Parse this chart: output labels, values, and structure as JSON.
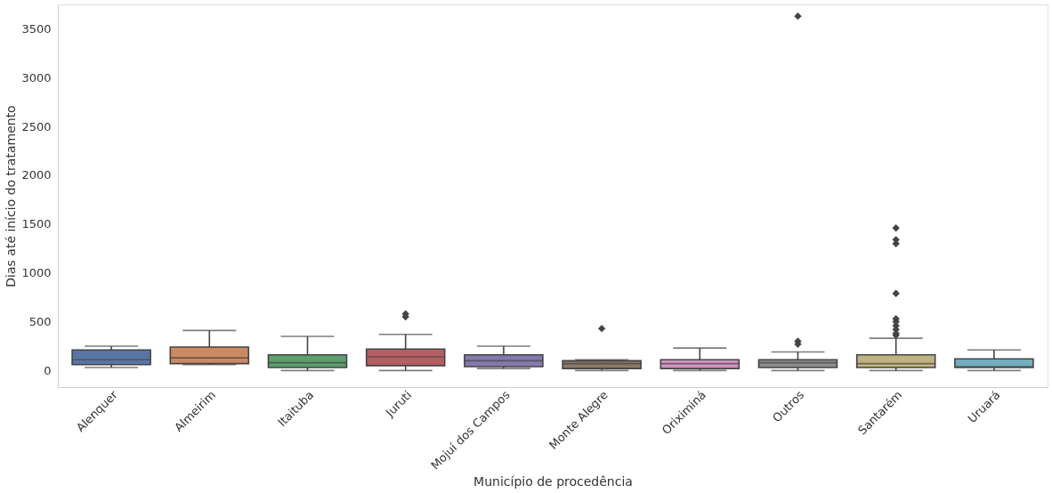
{
  "chart_data": {
    "type": "box",
    "xlabel": "Município de procedência",
    "ylabel": "Dias até início do tratamento",
    "categories": [
      "Alenquer",
      "Almeirim",
      "Itaituba",
      "Juruti",
      "Mojuí dos Campos",
      "Monte Alegre",
      "Oriximiná",
      "Outros",
      "Santarém",
      "Uruará"
    ],
    "colors": [
      "#5975a4",
      "#cc8963",
      "#5f9e6e",
      "#b55d60",
      "#857aab",
      "#8d7866",
      "#d095bf",
      "#8c8c8c",
      "#c1b37f",
      "#71aec0"
    ],
    "boxes": [
      {
        "low": 30,
        "q1": 60,
        "median": 110,
        "q3": 210,
        "high": 250
      },
      {
        "low": 60,
        "q1": 70,
        "median": 130,
        "q3": 240,
        "high": 410
      },
      {
        "low": 0,
        "q1": 30,
        "median": 80,
        "q3": 160,
        "high": 350
      },
      {
        "low": 0,
        "q1": 50,
        "median": 140,
        "q3": 220,
        "high": 370,
        "outliers": [
          550,
          580
        ]
      },
      {
        "low": 20,
        "q1": 40,
        "median": 100,
        "q3": 160,
        "high": 250
      },
      {
        "low": 0,
        "q1": 20,
        "median": 70,
        "q3": 100,
        "high": 110,
        "outliers": [
          430
        ]
      },
      {
        "low": 0,
        "q1": 20,
        "median": 70,
        "q3": 110,
        "high": 230
      },
      {
        "low": 0,
        "q1": 30,
        "median": 80,
        "q3": 110,
        "high": 190,
        "outliers": [
          270,
          300,
          3630
        ]
      },
      {
        "low": 0,
        "q1": 30,
        "median": 70,
        "q3": 160,
        "high": 330,
        "outliers": [
          360,
          380,
          420,
          460,
          500,
          530,
          790,
          1300,
          1340,
          1460
        ]
      },
      {
        "low": 0,
        "q1": 30,
        "median": 40,
        "q3": 120,
        "high": 210
      }
    ],
    "ylim": [
      -170,
      3750
    ],
    "yticks": [
      0,
      500,
      1000,
      1500,
      2000,
      2500,
      3000,
      3500
    ],
    "grid": false,
    "marker": "diamond"
  }
}
